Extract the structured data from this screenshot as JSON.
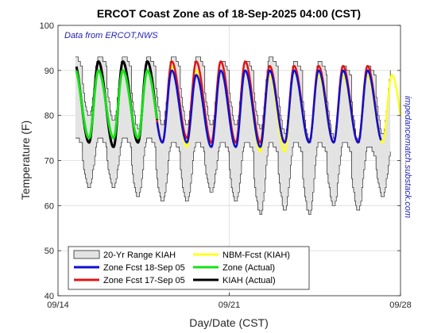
{
  "chart_data": {
    "type": "line",
    "title": "ERCOT Coast Zone as of 18-Sep-2025 04:00 (CST)",
    "xlabel": "Day/Date (CST)",
    "ylabel": "Temperature (F)",
    "xlim": [
      0,
      14
    ],
    "ylim": [
      40,
      100
    ],
    "x_ticks": [
      {
        "x": 0,
        "label": "09/14"
      },
      {
        "x": 7,
        "label": "09/21"
      },
      {
        "x": 14,
        "label": "09/28"
      }
    ],
    "y_ticks": [
      40,
      50,
      60,
      70,
      80,
      90,
      100
    ],
    "grid": true,
    "legend_position": "bottom-left",
    "annotations": {
      "source": "Data from ERCOT,NWS",
      "side": "impedancematch.substack.com"
    },
    "colors": {
      "range_fill": "#e3e3e3",
      "range_edge": "#222222",
      "zone_fcst_18": "#1010d0",
      "zone_fcst_17": "#e01515",
      "kiah_actual": "#000000",
      "nbm_fcst": "#ffff20",
      "zone_actual": "#18e018",
      "annotation": "#1f1fb4"
    },
    "range_20yr": {
      "name": "20-Yr Range KIAH",
      "days": [
        {
          "hi_min": 79,
          "hi_max": 93,
          "lo_min": 67,
          "lo_max": 75
        },
        {
          "hi_min": 80,
          "hi_max": 93,
          "lo_min": 64,
          "lo_max": 75
        },
        {
          "hi_min": 79,
          "hi_max": 93,
          "lo_min": 64,
          "lo_max": 75
        },
        {
          "hi_min": 77,
          "hi_max": 93,
          "lo_min": 62,
          "lo_max": 75
        },
        {
          "hi_min": 78,
          "hi_max": 93,
          "lo_min": 61,
          "lo_max": 74
        },
        {
          "hi_min": 78,
          "hi_max": 93,
          "lo_min": 61,
          "lo_max": 74
        },
        {
          "hi_min": 78,
          "hi_max": 92,
          "lo_min": 63,
          "lo_max": 74
        },
        {
          "hi_min": 78,
          "hi_max": 92,
          "lo_min": 61,
          "lo_max": 74
        },
        {
          "hi_min": 77,
          "hi_max": 93,
          "lo_min": 58,
          "lo_max": 74
        },
        {
          "hi_min": 76,
          "hi_max": 92,
          "lo_min": 59,
          "lo_max": 74
        },
        {
          "hi_min": 74,
          "hi_max": 92,
          "lo_min": 58,
          "lo_max": 74
        },
        {
          "hi_min": 75,
          "hi_max": 91,
          "lo_min": 60,
          "lo_max": 74
        },
        {
          "hi_min": 74,
          "hi_max": 91,
          "lo_min": 59,
          "lo_max": 73
        },
        {
          "hi_min": 76,
          "hi_max": 91,
          "lo_min": 62,
          "lo_max": 73
        }
      ]
    },
    "series": [
      {
        "name": "KIAH (Actual)",
        "key": "kiah_actual",
        "daily_min": [
          76,
          74,
          73,
          74
        ],
        "daily_max": [
          92,
          92,
          92
        ],
        "width": 3
      },
      {
        "name": "Zone (Actual)",
        "key": "zone_actual",
        "daily_min": [
          76,
          75,
          75,
          75
        ],
        "daily_max": [
          91,
          90,
          90
        ],
        "width": 3
      },
      {
        "name": "Zone Fcst 17-Sep 05",
        "key": "zone_fcst_17",
        "daily_min": [
          73,
          74,
          75,
          74,
          74,
          75,
          74,
          74,
          74,
          74
        ],
        "daily_max": [
          90,
          90,
          91,
          91,
          92,
          92,
          92,
          92,
          91
        ],
        "width": 2.5
      },
      {
        "name": "Zone Fcst 18-Sep 05",
        "key": "zone_fcst_18",
        "daily_min": [
          72,
          74,
          75,
          74,
          74,
          74,
          73,
          73,
          73,
          74
        ],
        "daily_max": [
          90,
          90,
          90,
          90,
          90,
          89,
          90,
          90,
          90,
          90
        ],
        "width": 2.5
      },
      {
        "name": "NBM-Fcst (KIAH)",
        "key": "nbm_fcst",
        "daily_min": [
          74,
          74,
          74,
          74,
          74,
          73,
          73,
          73,
          72,
          72,
          74
        ],
        "daily_max": [
          91,
          91,
          91,
          91,
          91,
          90,
          90,
          90,
          89,
          90,
          89
        ],
        "width": 2.5
      }
    ]
  },
  "legend": {
    "items": [
      {
        "label": "20-Yr Range KIAH",
        "key": "range"
      },
      {
        "label": "NBM-Fcst (KIAH)",
        "key": "nbm_fcst"
      },
      {
        "label": "Zone Fcst 18-Sep 05",
        "key": "zone_fcst_18"
      },
      {
        "label": "Zone (Actual)",
        "key": "zone_actual"
      },
      {
        "label": "Zone Fcst 17-Sep 05",
        "key": "zone_fcst_17"
      },
      {
        "label": "KIAH (Actual)",
        "key": "kiah_actual"
      }
    ]
  }
}
